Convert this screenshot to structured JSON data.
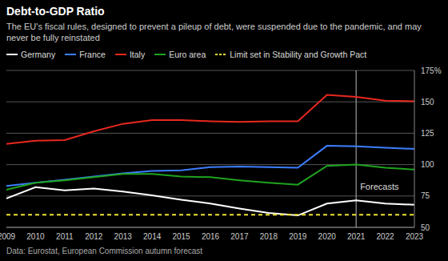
{
  "chart_data": {
    "type": "line",
    "title": "Debt-to-GDP Ratio",
    "subtitle": "The EU's fiscal rules, designed to prevent a pileup of debt, were suspended due to the pandemic, and may never be fully reinstated",
    "source": "Data: Eurostat, European Commission autumn forecast",
    "categories": [
      "2009",
      "2010",
      "2011",
      "2012",
      "2013",
      "2014",
      "2015",
      "2016",
      "2017",
      "2018",
      "2019",
      "2020",
      "2021",
      "2022",
      "2023"
    ],
    "series": [
      {
        "name": "Germany",
        "color": "#ffffff",
        "values": [
          73,
          82,
          79.5,
          81,
          78.5,
          75.5,
          72,
          69,
          65,
          61.5,
          59.5,
          69,
          71.5,
          69,
          68
        ]
      },
      {
        "name": "France",
        "color": "#3d7eff",
        "values": [
          83,
          85.5,
          88,
          90.5,
          93,
          95,
          95.5,
          98,
          98.5,
          98,
          97.5,
          115,
          114.5,
          113.5,
          112.5
        ]
      },
      {
        "name": "Italy",
        "color": "#e8281e",
        "values": [
          116.5,
          119,
          119.5,
          126.5,
          132.5,
          135.5,
          135.5,
          134.5,
          134,
          134.5,
          134.5,
          155.5,
          154,
          151,
          150.5
        ]
      },
      {
        "name": "Euro area",
        "color": "#1fa31f",
        "values": [
          80,
          85.5,
          87.5,
          90,
          92.5,
          92.5,
          90.5,
          90,
          87.5,
          85.5,
          84,
          99,
          100,
          97.5,
          96
        ]
      },
      {
        "name": "Limit set in Stability and Growth Pact",
        "color": "#f0e130",
        "line_style": "dashed",
        "values": [
          60,
          60,
          60,
          60,
          60,
          60,
          60,
          60,
          60,
          60,
          60,
          60,
          60,
          60,
          60
        ]
      }
    ],
    "annotation": {
      "x": "2021",
      "label": "Forecasts"
    },
    "ylim": [
      50,
      175
    ],
    "yticks": [
      50,
      75,
      100,
      125,
      150,
      {
        "value": 175,
        "label": "175%"
      }
    ],
    "grid": true,
    "legend": "top-left"
  }
}
